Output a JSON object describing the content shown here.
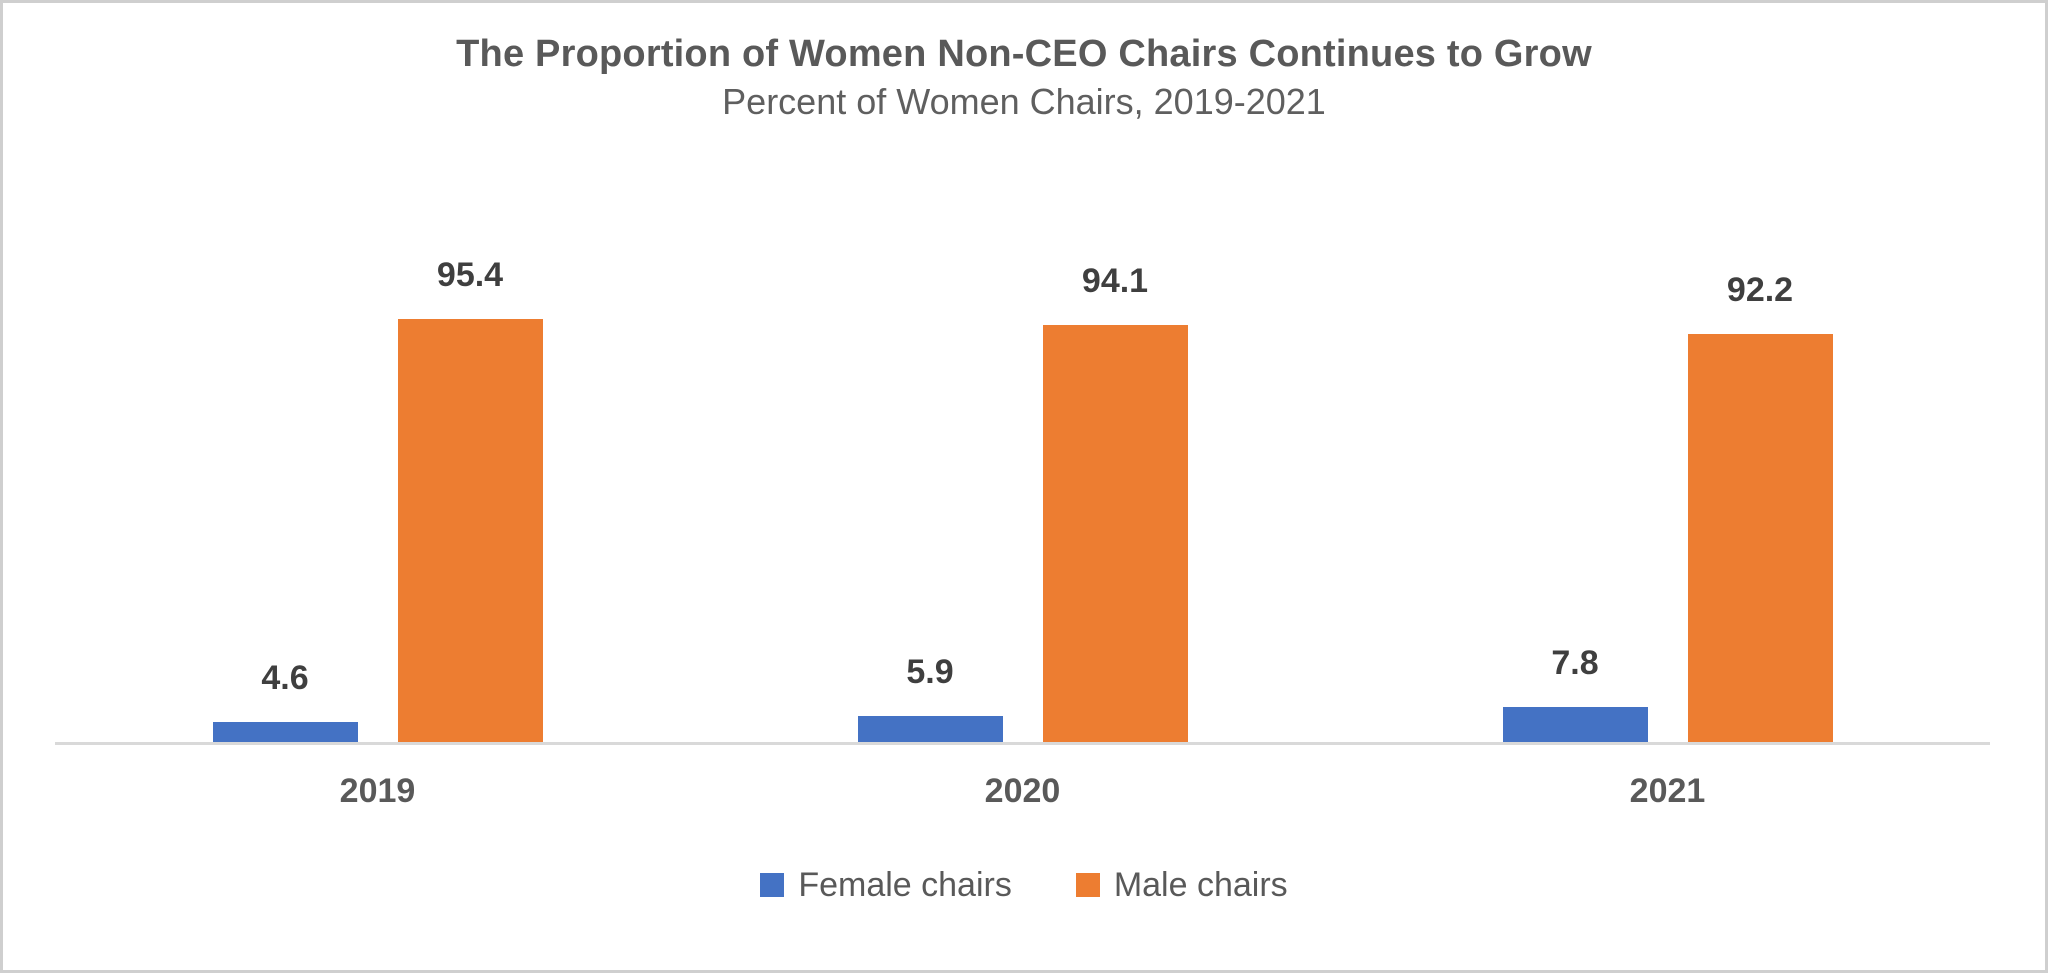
{
  "chart_data": {
    "type": "bar",
    "title": "The Proportion of Women Non-CEO Chairs Continues to Grow",
    "subtitle": "Percent of Women Chairs, 2019-2021",
    "categories": [
      "2019",
      "2020",
      "2021"
    ],
    "series": [
      {
        "name": "Female chairs",
        "color": "#4472C4",
        "values": [
          4.6,
          5.9,
          7.8
        ]
      },
      {
        "name": "Male chairs",
        "color": "#ED7D31",
        "values": [
          95.4,
          94.1,
          92.2
        ]
      }
    ],
    "ylim": [
      0,
      100
    ],
    "grid": false,
    "y_axis_visible": false,
    "data_labels": true,
    "legend_position": "bottom"
  },
  "colors": {
    "title_text": "#595959",
    "subtitle_text": "#5F5F5F",
    "data_label_text": "#3F3F3F",
    "axis_label_text": "#595959",
    "legend_text": "#595959",
    "axis_line": "#D9D9D9",
    "outer_border": "#CFCFCF",
    "background": "#FFFFFF",
    "female_bar": "#4472C4",
    "male_bar": "#ED7D31"
  }
}
